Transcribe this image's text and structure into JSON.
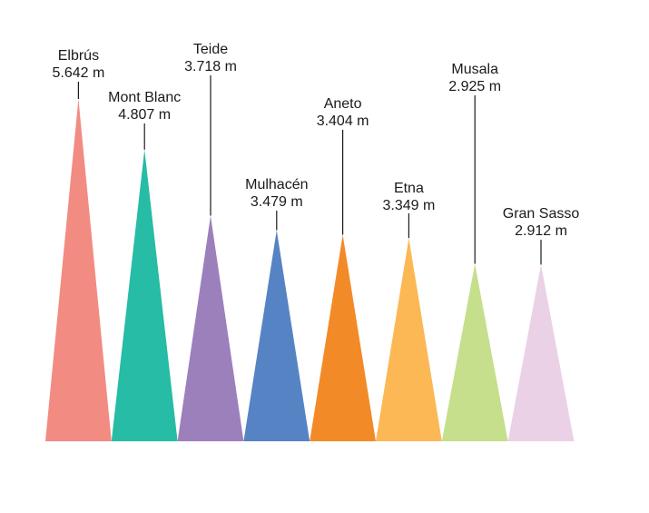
{
  "chart_data": {
    "type": "bar",
    "mark_shape": "triangle",
    "categories": [
      "Elbrús",
      "Mont Blanc",
      "Teide",
      "Mulhacén",
      "Aneto",
      "Etna",
      "Musala",
      "Gran Sasso"
    ],
    "labels": [
      "5.642 m",
      "4.807 m",
      "3.718 m",
      "3.479 m",
      "3.404 m",
      "3.349 m",
      "2.925 m",
      "2.912 m"
    ],
    "values": [
      5642,
      4807,
      3718,
      3479,
      3404,
      3349,
      2925,
      2912
    ],
    "colors": [
      "#f28b82",
      "#26bca5",
      "#9c80bb",
      "#5683c3",
      "#f38a28",
      "#fbb854",
      "#c5df8c",
      "#ebd1e6"
    ],
    "title": "",
    "xlabel": "",
    "ylabel": "",
    "ylim": [
      0,
      5642
    ],
    "grid": false,
    "legend": "none"
  }
}
